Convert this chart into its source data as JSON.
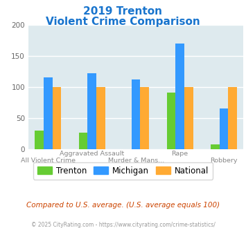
{
  "title_line1": "2019 Trenton",
  "title_line2": "Violent Crime Comparison",
  "title_color": "#1874cd",
  "trenton": [
    30,
    27,
    0,
    91,
    8
  ],
  "michigan": [
    116,
    122,
    112,
    170,
    66
  ],
  "national": [
    100,
    100,
    100,
    100,
    100
  ],
  "trenton_color": "#66cc33",
  "michigan_color": "#3399ff",
  "national_color": "#ffaa33",
  "ylim": [
    0,
    200
  ],
  "yticks": [
    0,
    50,
    100,
    150,
    200
  ],
  "plot_bg": "#deeaee",
  "footer": "Compared to U.S. average. (U.S. average equals 100)",
  "copyright": "© 2025 CityRating.com - https://www.cityrating.com/crime-statistics/",
  "footer_color": "#cc4400",
  "copyright_color": "#999999",
  "legend_labels": [
    "Trenton",
    "Michigan",
    "National"
  ],
  "top_labels": [
    "",
    "Aggravated Assault",
    "",
    "Rape",
    ""
  ],
  "bot_labels": [
    "All Violent Crime",
    "",
    "Murder & Mans...",
    "",
    "Robbery"
  ]
}
